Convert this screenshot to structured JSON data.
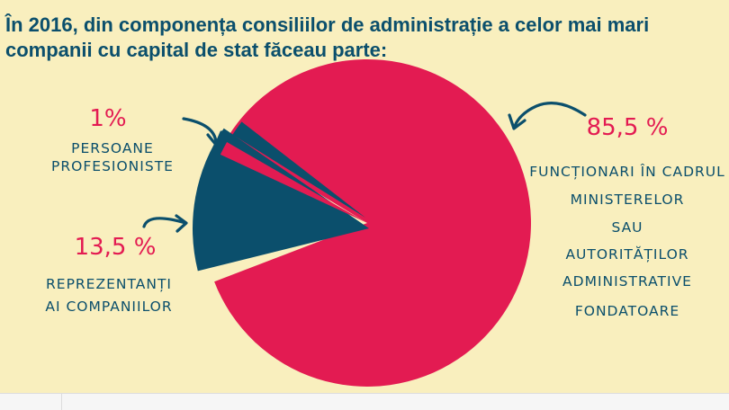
{
  "header": {
    "title_line1": "În 2016, din componența consiliilor de administrație a celor mai mari",
    "title_line2": "companii cu capital de stat făceau parte:"
  },
  "colors": {
    "background": "#f9efbe",
    "accent_red": "#e31b52",
    "accent_navy": "#0b4f6c"
  },
  "icons": [
    "curved-arrow-icon"
  ],
  "chart_data": {
    "type": "pie",
    "slices": [
      {
        "percent": 85.5,
        "value_label": "85,5 %",
        "label_lines": [
          "FUNCȚIONARI ÎN CADRUL",
          "MINISTERELOR",
          "SAU",
          "AUTORITĂȚILOR",
          "ADMINISTRATIVE",
          "FONDATOARE"
        ],
        "color": "#e31b52"
      },
      {
        "percent": 13.5,
        "value_label": "13,5 %",
        "label_lines": [
          "REPREZENTANȚI",
          "AI COMPANIILOR"
        ],
        "color": "#0b4f6c"
      },
      {
        "percent": 1,
        "value_label": "1%",
        "label_lines": [
          "PERSOANE",
          "PROFESIONISTE"
        ],
        "color": "#0b4f6c"
      }
    ]
  }
}
